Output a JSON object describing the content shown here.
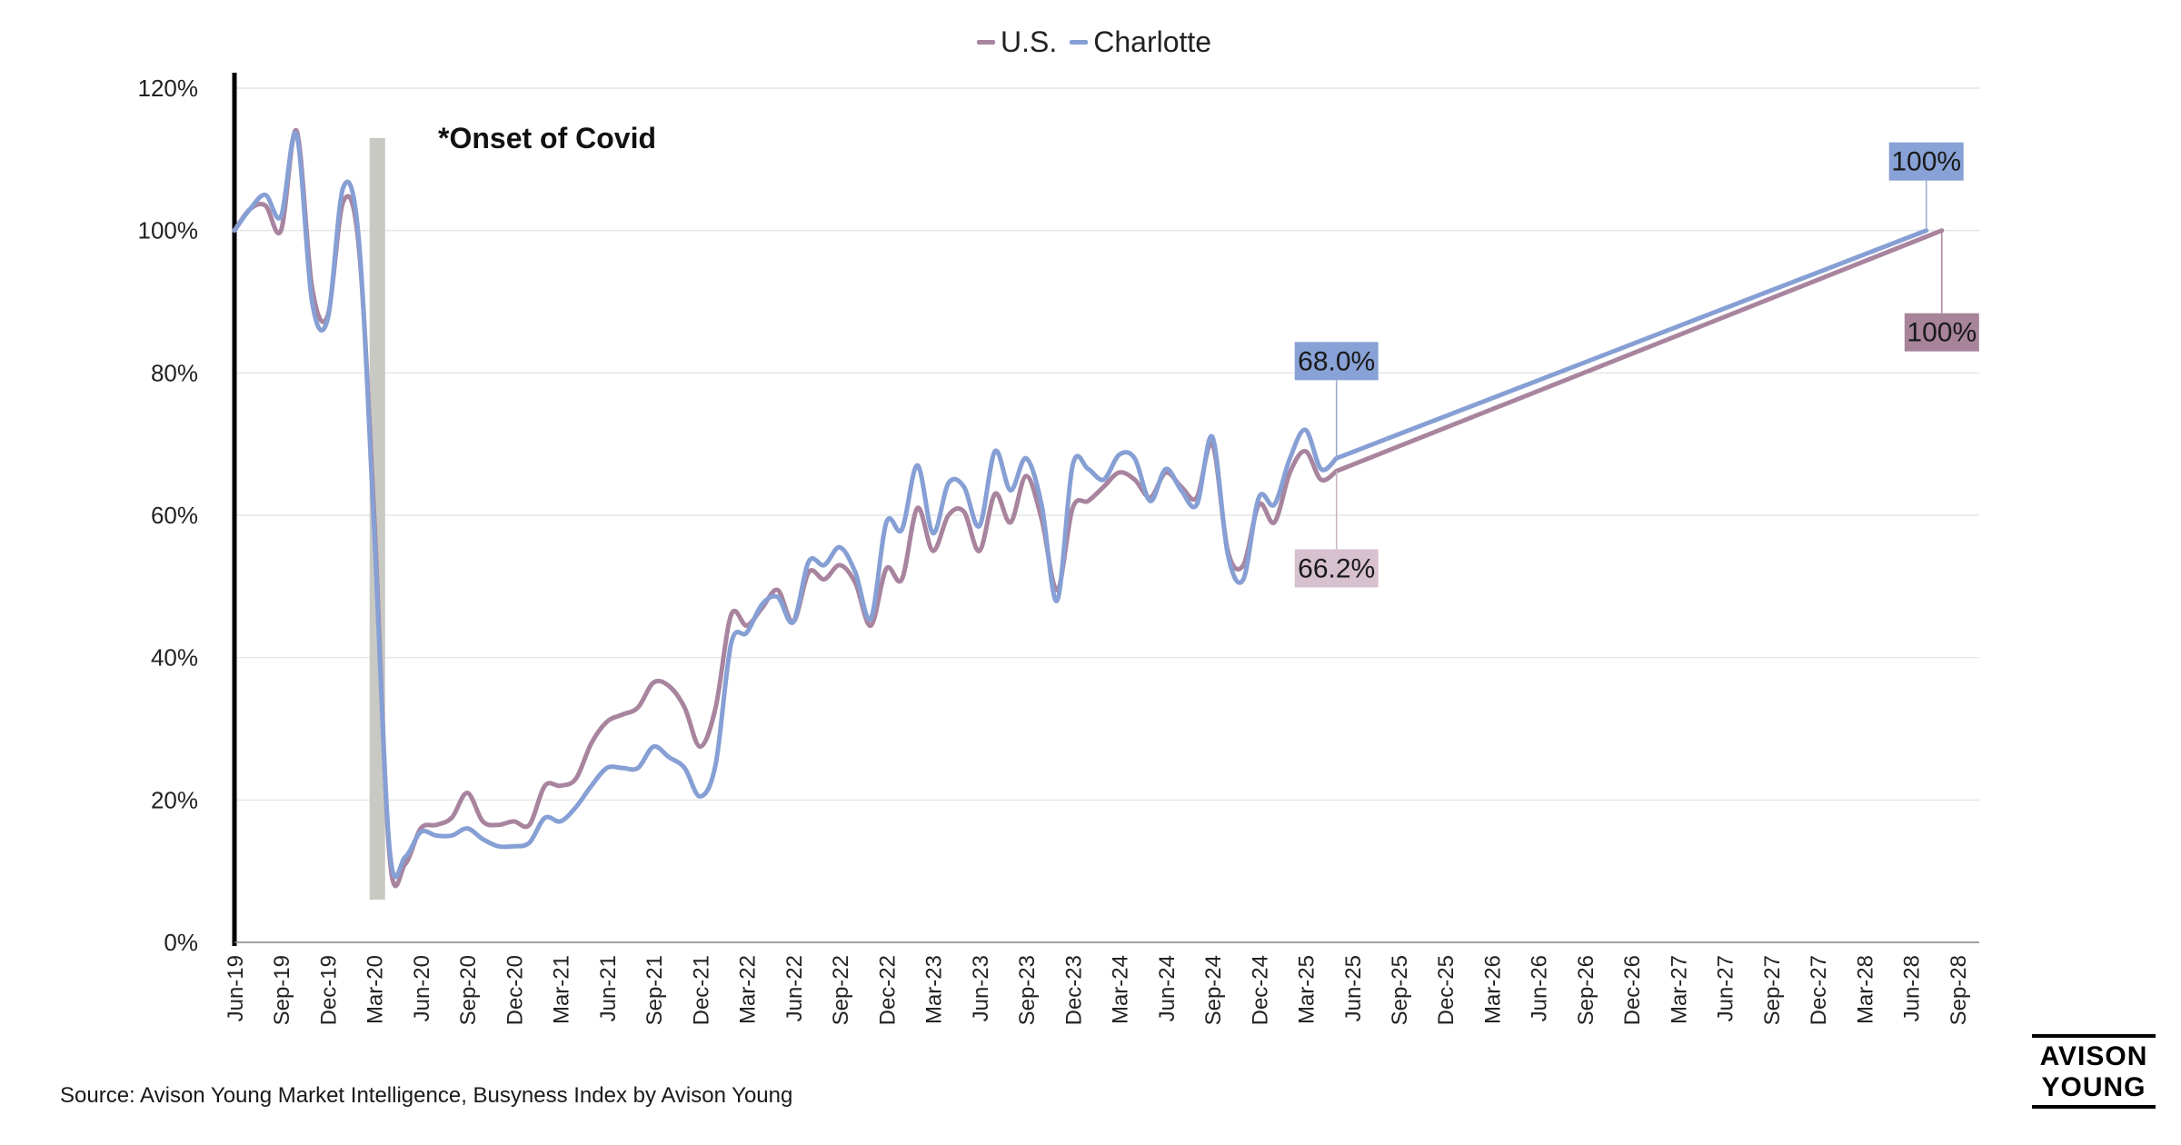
{
  "legend": {
    "us": "U.S.",
    "charlotte": "Charlotte"
  },
  "source": "Source: Avison Young Market Intelligence, Busyness Index by Avison Young",
  "logo": {
    "line1": "AVISON",
    "line2": "YOUNG"
  },
  "colors": {
    "us": "#a8849f",
    "charlotte": "#869fd4",
    "covid_band": "#c9c9c4",
    "us_label_bg_light": "#d7c1cf",
    "us_label_bg_dark": "#a7849a",
    "charlotte_label_bg": "#88a1d6"
  },
  "chart_data": {
    "type": "line",
    "y_ticks": [
      "0%",
      "20%",
      "40%",
      "60%",
      "80%",
      "100%",
      "120%"
    ],
    "ylim": [
      0,
      120
    ],
    "x_tick_labels": [
      "Jun-19",
      "Sep-19",
      "Dec-19",
      "Mar-20",
      "Jun-20",
      "Sep-20",
      "Dec-20",
      "Mar-21",
      "Jun-21",
      "Sep-21",
      "Dec-21",
      "Mar-22",
      "Jun-22",
      "Sep-22",
      "Dec-22",
      "Mar-23",
      "Jun-23",
      "Sep-23",
      "Dec-23",
      "Mar-24",
      "Jun-24",
      "Sep-24",
      "Dec-24",
      "Mar-25",
      "Jun-25",
      "Sep-25",
      "Dec-25",
      "Mar-26",
      "Jun-26",
      "Sep-26",
      "Dec-26",
      "Mar-27",
      "Jun-27",
      "Sep-27",
      "Dec-27",
      "Mar-28",
      "Jun-28",
      "Sep-28"
    ],
    "x_start": "Jun-19",
    "annotation": "*Onset of Covid",
    "covid_band": {
      "x": [
        "Mar-20",
        "Apr-20"
      ],
      "y": [
        6,
        113
      ]
    },
    "series": [
      {
        "name": "U.S.",
        "points": [
          [
            "Jun-19",
            100
          ],
          [
            "Jul-19",
            103
          ],
          [
            "Aug-19",
            103.5
          ],
          [
            "Sep-19",
            100
          ],
          [
            "Oct-19",
            114
          ],
          [
            "Nov-19",
            92
          ],
          [
            "Dec-19",
            88
          ],
          [
            "Jan-20",
            104
          ],
          [
            "Feb-20",
            98
          ],
          [
            "Mar-20",
            60
          ],
          [
            "Apr-20",
            12
          ],
          [
            "May-20",
            11
          ],
          [
            "Jun-20",
            16
          ],
          [
            "Jul-20",
            16.5
          ],
          [
            "Aug-20",
            17.5
          ],
          [
            "Sep-20",
            21
          ],
          [
            "Oct-20",
            17
          ],
          [
            "Nov-20",
            16.5
          ],
          [
            "Dec-20",
            17
          ],
          [
            "Jan-21",
            16.5
          ],
          [
            "Feb-21",
            22
          ],
          [
            "Mar-21",
            22
          ],
          [
            "Apr-21",
            23
          ],
          [
            "May-21",
            28
          ],
          [
            "Jun-21",
            31
          ],
          [
            "Jul-21",
            32
          ],
          [
            "Aug-21",
            33
          ],
          [
            "Sep-21",
            36.5
          ],
          [
            "Oct-21",
            36
          ],
          [
            "Nov-21",
            33
          ],
          [
            "Dec-21",
            27.5
          ],
          [
            "Jan-22",
            33
          ],
          [
            "Feb-22",
            46
          ],
          [
            "Mar-22",
            44.5
          ],
          [
            "Apr-22",
            47
          ],
          [
            "May-22",
            49.5
          ],
          [
            "Jun-22",
            45
          ],
          [
            "Jul-22",
            52
          ],
          [
            "Aug-22",
            51
          ],
          [
            "Sep-22",
            53
          ],
          [
            "Oct-22",
            50.5
          ],
          [
            "Nov-22",
            44.5
          ],
          [
            "Dec-22",
            52.5
          ],
          [
            "Jan-23",
            51
          ],
          [
            "Feb-23",
            61
          ],
          [
            "Mar-23",
            55
          ],
          [
            "Apr-23",
            60
          ],
          [
            "May-23",
            60.5
          ],
          [
            "Jun-23",
            55
          ],
          [
            "Jul-23",
            63
          ],
          [
            "Aug-23",
            59
          ],
          [
            "Sep-23",
            65.5
          ],
          [
            "Oct-23",
            59.5
          ],
          [
            "Nov-23",
            49.5
          ],
          [
            "Dec-23",
            61
          ],
          [
            "Jan-24",
            62
          ],
          [
            "Feb-24",
            64
          ],
          [
            "Mar-24",
            66
          ],
          [
            "Apr-24",
            65
          ],
          [
            "May-24",
            62.5
          ],
          [
            "Jun-24",
            66
          ],
          [
            "Jul-24",
            64
          ],
          [
            "Aug-24",
            62.5
          ],
          [
            "Sep-24",
            70
          ],
          [
            "Oct-24",
            55
          ],
          [
            "Nov-24",
            53
          ],
          [
            "Dec-24",
            61.5
          ],
          [
            "Jan-25",
            59
          ],
          [
            "Feb-25",
            66
          ],
          [
            "Mar-25",
            69
          ],
          [
            "Apr-25",
            65
          ],
          [
            "May-25",
            66.2
          ],
          [
            "Aug-28",
            100
          ]
        ]
      },
      {
        "name": "Charlotte",
        "points": [
          [
            "Jun-19",
            100
          ],
          [
            "Jul-19",
            103
          ],
          [
            "Aug-19",
            105
          ],
          [
            "Sep-19",
            102
          ],
          [
            "Oct-19",
            113.5
          ],
          [
            "Nov-19",
            90
          ],
          [
            "Dec-19",
            87.5
          ],
          [
            "Jan-20",
            106
          ],
          [
            "Feb-20",
            99
          ],
          [
            "Mar-20",
            58
          ],
          [
            "Apr-20",
            13
          ],
          [
            "May-20",
            12
          ],
          [
            "Jun-20",
            15.5
          ],
          [
            "Jul-20",
            15
          ],
          [
            "Aug-20",
            15
          ],
          [
            "Sep-20",
            16
          ],
          [
            "Oct-20",
            14.5
          ],
          [
            "Nov-20",
            13.5
          ],
          [
            "Dec-20",
            13.5
          ],
          [
            "Jan-21",
            14
          ],
          [
            "Feb-21",
            17.5
          ],
          [
            "Mar-21",
            17
          ],
          [
            "Apr-21",
            19
          ],
          [
            "May-21",
            22
          ],
          [
            "Jun-21",
            24.5
          ],
          [
            "Jul-21",
            24.5
          ],
          [
            "Aug-21",
            24.5
          ],
          [
            "Sep-21",
            27.5
          ],
          [
            "Oct-21",
            26
          ],
          [
            "Nov-21",
            24.5
          ],
          [
            "Dec-21",
            20.5
          ],
          [
            "Jan-22",
            25
          ],
          [
            "Feb-22",
            42
          ],
          [
            "Mar-22",
            43.5
          ],
          [
            "Apr-22",
            47.5
          ],
          [
            "May-22",
            48.5
          ],
          [
            "Jun-22",
            45
          ],
          [
            "Jul-22",
            53.5
          ],
          [
            "Aug-22",
            53
          ],
          [
            "Sep-22",
            55.5
          ],
          [
            "Oct-22",
            52
          ],
          [
            "Nov-22",
            45.5
          ],
          [
            "Dec-22",
            59
          ],
          [
            "Jan-23",
            58
          ],
          [
            "Feb-23",
            67
          ],
          [
            "Mar-23",
            57.5
          ],
          [
            "Apr-23",
            64.5
          ],
          [
            "May-23",
            64
          ],
          [
            "Jun-23",
            58.5
          ],
          [
            "Jul-23",
            69
          ],
          [
            "Aug-23",
            63.5
          ],
          [
            "Sep-23",
            68
          ],
          [
            "Oct-23",
            61.5
          ],
          [
            "Nov-23",
            48
          ],
          [
            "Dec-23",
            67
          ],
          [
            "Jan-24",
            66.5
          ],
          [
            "Feb-24",
            65
          ],
          [
            "Mar-24",
            68.5
          ],
          [
            "Apr-24",
            68
          ],
          [
            "May-24",
            62
          ],
          [
            "Jun-24",
            66.5
          ],
          [
            "Jul-24",
            63.5
          ],
          [
            "Aug-24",
            61.5
          ],
          [
            "Sep-24",
            71
          ],
          [
            "Oct-24",
            54.5
          ],
          [
            "Nov-24",
            51
          ],
          [
            "Dec-24",
            62.5
          ],
          [
            "Jan-25",
            61.5
          ],
          [
            "Feb-25",
            68
          ],
          [
            "Mar-25",
            72
          ],
          [
            "Apr-25",
            66.5
          ],
          [
            "May-25",
            68.0
          ],
          [
            "Jul-28",
            100
          ]
        ]
      }
    ],
    "data_labels": [
      {
        "series": "Charlotte",
        "text": "68.0%",
        "at": [
          "May-25",
          68.0
        ]
      },
      {
        "series": "U.S.",
        "text": "66.2%",
        "at": [
          "May-25",
          66.2
        ]
      },
      {
        "series": "Charlotte",
        "text": "100%",
        "at": [
          "Jul-28",
          100
        ]
      },
      {
        "series": "U.S.",
        "text": "100%",
        "at": [
          "Aug-28",
          100
        ]
      }
    ],
    "grid": true
  }
}
